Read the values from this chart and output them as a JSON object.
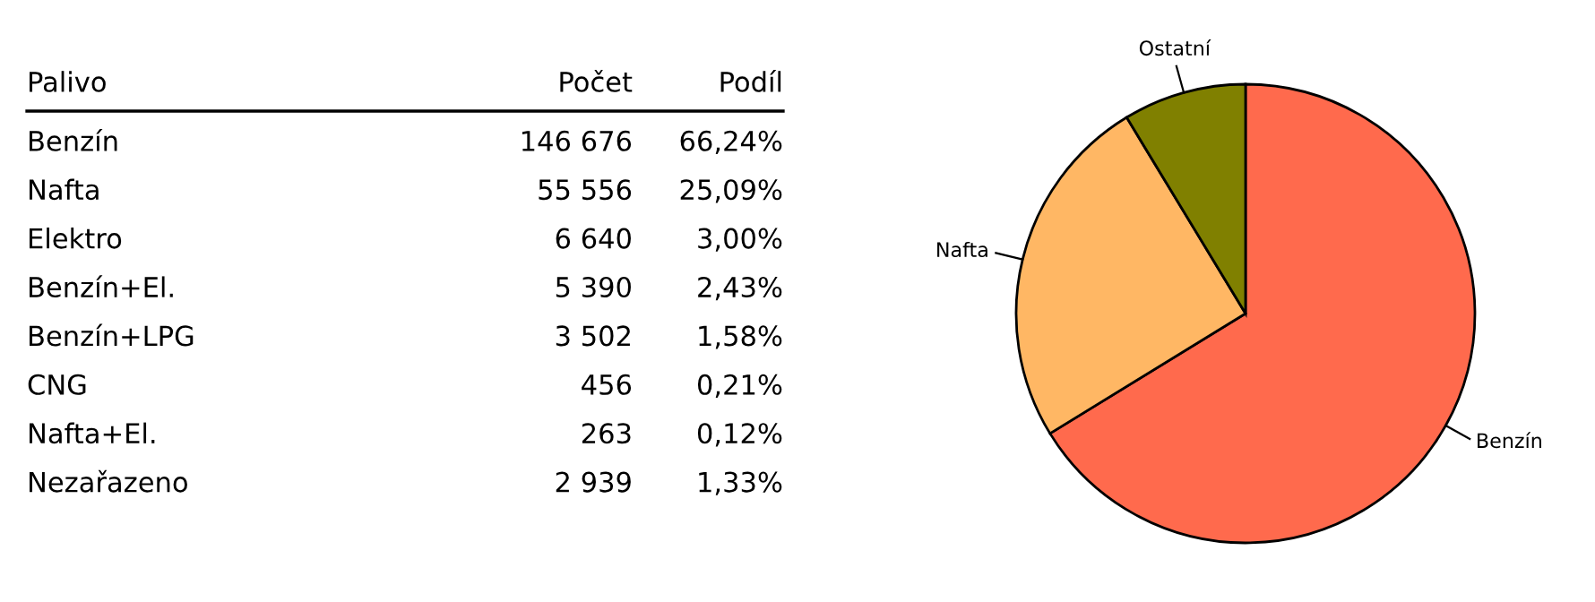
{
  "chart_data": [
    {
      "type": "other",
      "annotations": [
        "Palivo"
      ],
      "categories": [
        "Benzín",
        "Nafta",
        "Elektro",
        "Benzín+El.",
        "Benzín+LPG",
        "CNG",
        "Nafta+El.",
        "Nezařazeno"
      ],
      "data_labels": true,
      "series": [
        {
          "name": "Počet",
          "values": [
            146676,
            55556,
            6640,
            5390,
            3502,
            456,
            263,
            2939
          ]
        },
        {
          "name": "Podíl",
          "values": [
            66.24,
            25.09,
            3.0,
            2.43,
            1.58,
            0.21,
            0.12,
            1.33
          ],
          "value_labels": [
            "66,24%",
            "25,09%",
            "3,00%",
            "2,43%",
            "1,58%",
            "0,21%",
            "0,12%",
            "1,33%"
          ]
        }
      ]
    },
    {
      "type": "pie",
      "categories": [
        "Benzín",
        "Nafta",
        "Ostatní"
      ],
      "values": [
        66.24,
        25.09,
        8.67
      ],
      "colors": [
        "#ff6a4d",
        "#ffb764",
        "#808000"
      ]
    }
  ]
}
